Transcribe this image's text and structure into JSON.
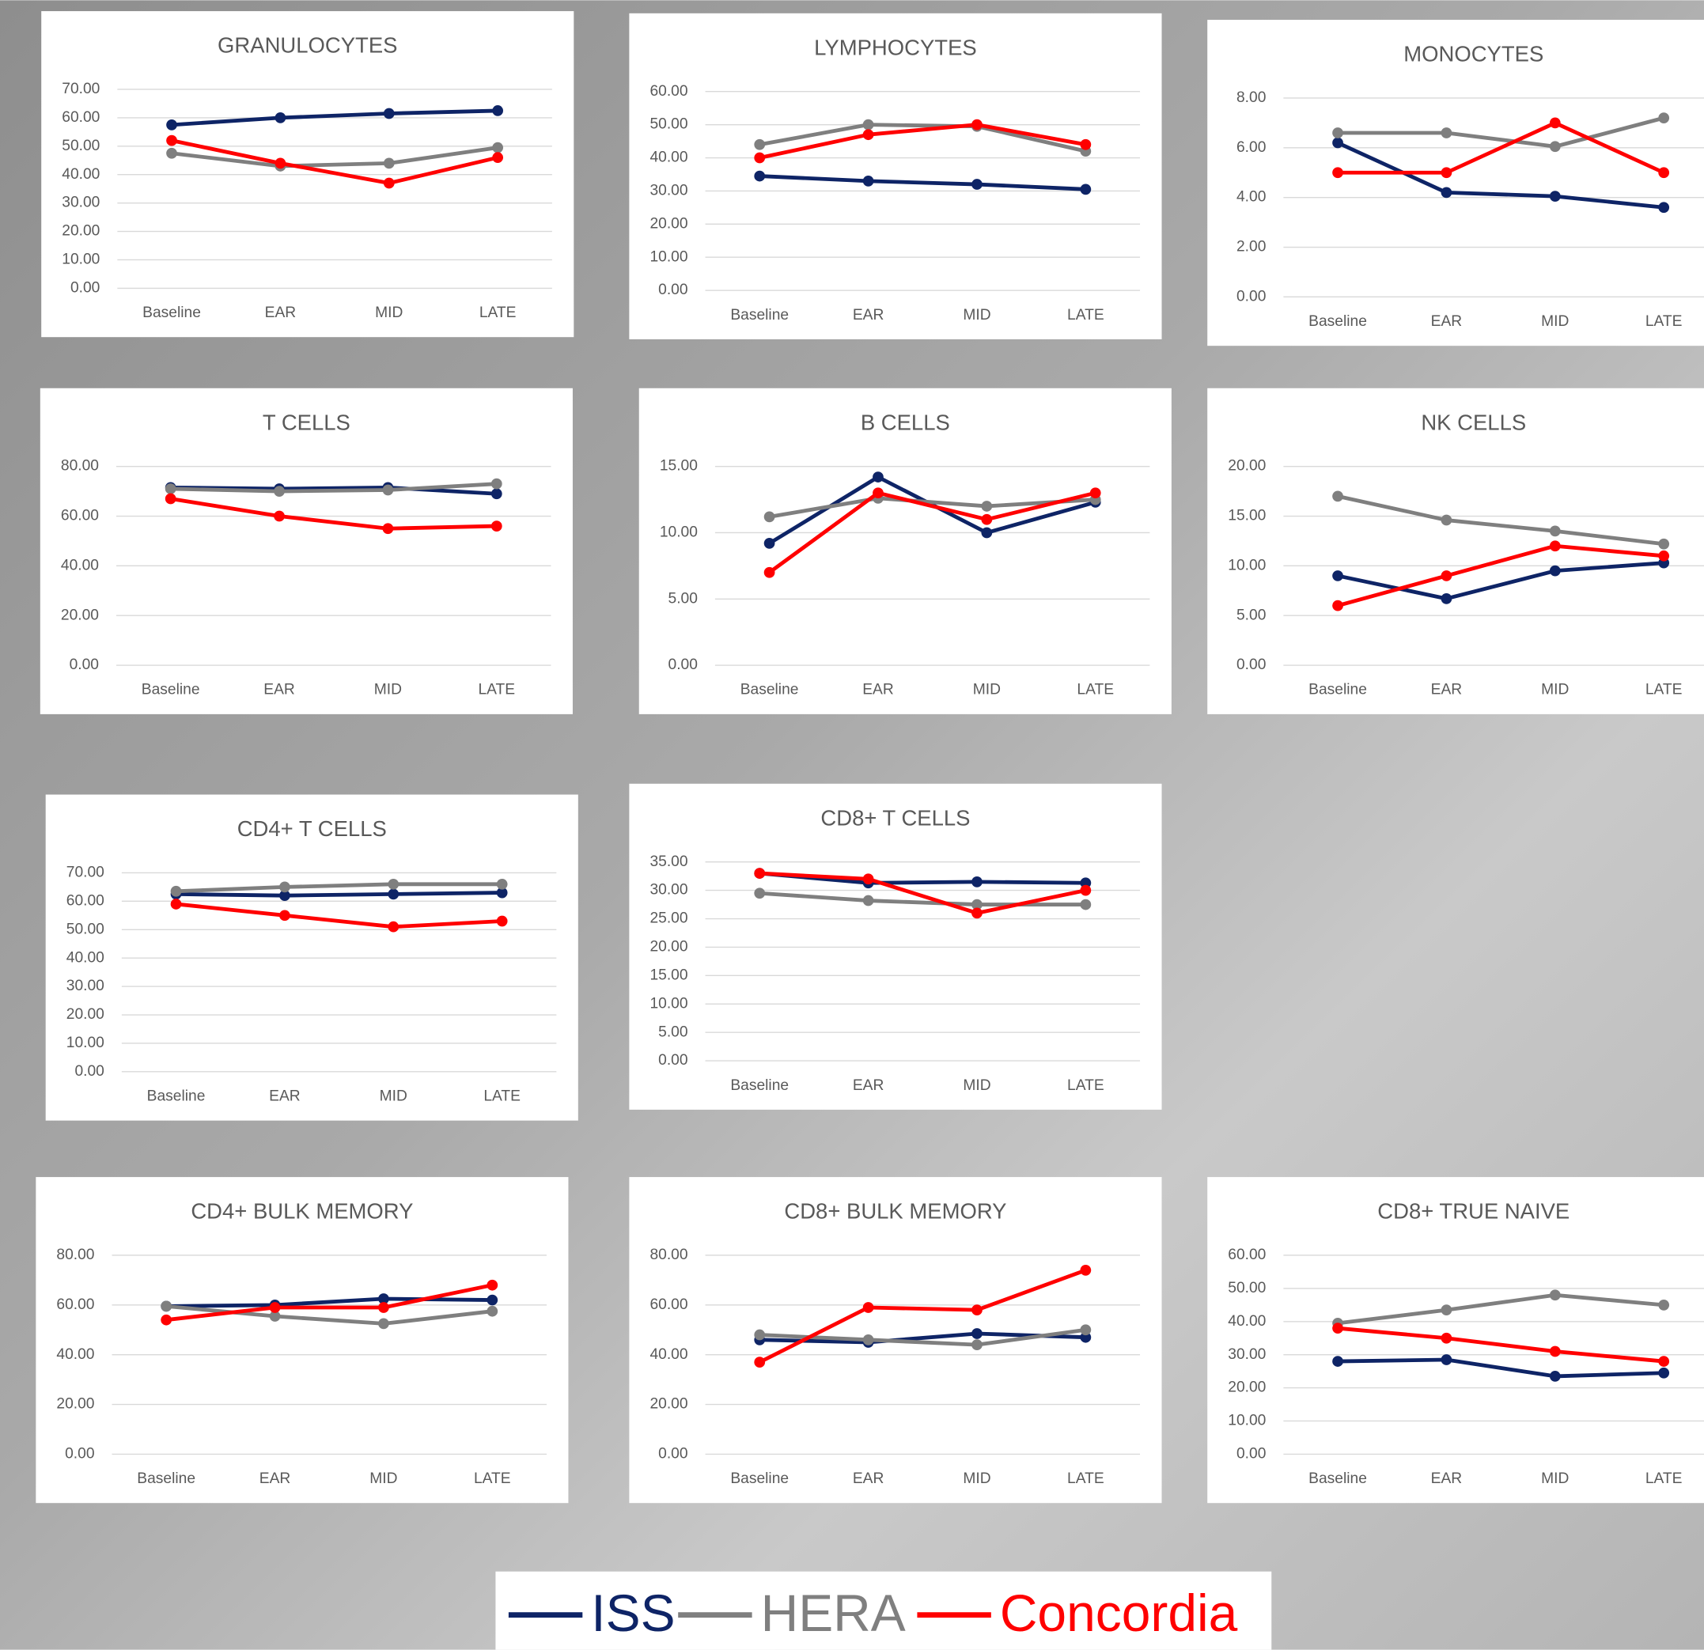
{
  "chart_data": [
    {
      "type": "line",
      "title": "GRANULOCYTES",
      "categories": [
        "Baseline",
        "EAR",
        "MID",
        "LATE"
      ],
      "ylim": [
        0,
        70
      ],
      "yticks": [
        {
          "value": 0,
          "label": "0.00"
        },
        {
          "value": 10,
          "label": "10.00"
        },
        {
          "value": 20,
          "label": "20.00"
        },
        {
          "value": 30,
          "label": "30.00"
        },
        {
          "value": 40,
          "label": "40.00"
        },
        {
          "value": 50,
          "label": "50.00"
        },
        {
          "value": 60,
          "label": "60.00"
        },
        {
          "value": 70,
          "label": "70.00"
        }
      ],
      "series": [
        {
          "values": [
            57.5,
            60,
            61.5,
            62.5
          ]
        },
        {
          "values": [
            47.5,
            43,
            44,
            49.5
          ]
        },
        {
          "values": [
            52,
            44,
            37,
            46
          ]
        }
      ]
    },
    {
      "type": "line",
      "title": "LYMPHOCYTES",
      "categories": [
        "Baseline",
        "EAR",
        "MID",
        "LATE"
      ],
      "ylim": [
        0,
        60
      ],
      "yticks": [
        {
          "value": 0,
          "label": "0.00"
        },
        {
          "value": 10,
          "label": "10.00"
        },
        {
          "value": 20,
          "label": "20.00"
        },
        {
          "value": 30,
          "label": "30.00"
        },
        {
          "value": 40,
          "label": "40.00"
        },
        {
          "value": 50,
          "label": "50.00"
        },
        {
          "value": 60,
          "label": "60.00"
        }
      ],
      "series": [
        {
          "values": [
            34.5,
            33,
            32,
            30.5
          ]
        },
        {
          "values": [
            44,
            50,
            49.5,
            42
          ]
        },
        {
          "values": [
            40,
            47,
            50,
            44
          ]
        }
      ]
    },
    {
      "type": "line",
      "title": "MONOCYTES",
      "categories": [
        "Baseline",
        "EAR",
        "MID",
        "LATE"
      ],
      "ylim": [
        0,
        8
      ],
      "yticks": [
        {
          "value": 0,
          "label": "0.00"
        },
        {
          "value": 2,
          "label": "2.00"
        },
        {
          "value": 4,
          "label": "4.00"
        },
        {
          "value": 6,
          "label": "6.00"
        },
        {
          "value": 8,
          "label": "8.00"
        }
      ],
      "series": [
        {
          "values": [
            6.2,
            4.2,
            4.05,
            3.6
          ]
        },
        {
          "values": [
            6.6,
            6.6,
            6.05,
            7.2
          ]
        },
        {
          "values": [
            5,
            5,
            7,
            5
          ]
        }
      ]
    },
    {
      "type": "line",
      "title": "T CELLS",
      "categories": [
        "Baseline",
        "EAR",
        "MID",
        "LATE"
      ],
      "ylim": [
        0,
        80
      ],
      "yticks": [
        {
          "value": 0,
          "label": "0.00"
        },
        {
          "value": 20,
          "label": "20.00"
        },
        {
          "value": 40,
          "label": "40.00"
        },
        {
          "value": 60,
          "label": "60.00"
        },
        {
          "value": 80,
          "label": "80.00"
        }
      ],
      "series": [
        {
          "values": [
            71.5,
            71,
            71.5,
            69
          ]
        },
        {
          "values": [
            71,
            70,
            70.5,
            73
          ]
        },
        {
          "values": [
            67,
            60,
            55,
            56
          ]
        }
      ]
    },
    {
      "type": "line",
      "title": "B CELLS",
      "categories": [
        "Baseline",
        "EAR",
        "MID",
        "LATE"
      ],
      "ylim": [
        0,
        15
      ],
      "yticks": [
        {
          "value": 0,
          "label": "0.00"
        },
        {
          "value": 5,
          "label": "5.00"
        },
        {
          "value": 10,
          "label": "10.00"
        },
        {
          "value": 15,
          "label": "15.00"
        }
      ],
      "series": [
        {
          "values": [
            9.2,
            14.2,
            10,
            12.3
          ]
        },
        {
          "values": [
            11.2,
            12.6,
            12,
            12.5
          ]
        },
        {
          "values": [
            7,
            13,
            11,
            13
          ]
        }
      ]
    },
    {
      "type": "line",
      "title": "NK CELLS",
      "categories": [
        "Baseline",
        "EAR",
        "MID",
        "LATE"
      ],
      "ylim": [
        0,
        20
      ],
      "yticks": [
        {
          "value": 0,
          "label": "0.00"
        },
        {
          "value": 5,
          "label": "5.00"
        },
        {
          "value": 10,
          "label": "10.00"
        },
        {
          "value": 15,
          "label": "15.00"
        },
        {
          "value": 20,
          "label": "20.00"
        }
      ],
      "series": [
        {
          "values": [
            9,
            6.7,
            9.5,
            10.3
          ]
        },
        {
          "values": [
            17,
            14.6,
            13.5,
            12.2
          ]
        },
        {
          "values": [
            6,
            9,
            12,
            11
          ]
        }
      ]
    },
    {
      "type": "line",
      "title": "CD4+ T CELLS",
      "categories": [
        "Baseline",
        "EAR",
        "MID",
        "LATE"
      ],
      "ylim": [
        0,
        70
      ],
      "yticks": [
        {
          "value": 0,
          "label": "0.00"
        },
        {
          "value": 10,
          "label": "10.00"
        },
        {
          "value": 20,
          "label": "20.00"
        },
        {
          "value": 30,
          "label": "30.00"
        },
        {
          "value": 40,
          "label": "40.00"
        },
        {
          "value": 50,
          "label": "50.00"
        },
        {
          "value": 60,
          "label": "60.00"
        },
        {
          "value": 70,
          "label": "70.00"
        }
      ],
      "series": [
        {
          "values": [
            62.5,
            62,
            62.5,
            63
          ]
        },
        {
          "values": [
            63.5,
            65,
            66,
            66
          ]
        },
        {
          "values": [
            59,
            55,
            51,
            53
          ]
        }
      ]
    },
    {
      "type": "line",
      "title": "CD8+ T CELLS",
      "categories": [
        "Baseline",
        "EAR",
        "MID",
        "LATE"
      ],
      "ylim": [
        0,
        35
      ],
      "yticks": [
        {
          "value": 0,
          "label": "0.00"
        },
        {
          "value": 5,
          "label": "5.00"
        },
        {
          "value": 10,
          "label": "10.00"
        },
        {
          "value": 15,
          "label": "15.00"
        },
        {
          "value": 20,
          "label": "20.00"
        },
        {
          "value": 25,
          "label": "25.00"
        },
        {
          "value": 30,
          "label": "30.00"
        },
        {
          "value": 35,
          "label": "35.00"
        }
      ],
      "series": [
        {
          "values": [
            33,
            31.3,
            31.5,
            31.3
          ]
        },
        {
          "values": [
            29.5,
            28.2,
            27.5,
            27.5
          ]
        },
        {
          "values": [
            33,
            32,
            26,
            30
          ]
        }
      ]
    },
    {
      "type": "line",
      "title": "CD4+ BULK MEMORY",
      "categories": [
        "Baseline",
        "EAR",
        "MID",
        "LATE"
      ],
      "ylim": [
        0,
        80
      ],
      "yticks": [
        {
          "value": 0,
          "label": "0.00"
        },
        {
          "value": 20,
          "label": "20.00"
        },
        {
          "value": 40,
          "label": "40.00"
        },
        {
          "value": 60,
          "label": "60.00"
        },
        {
          "value": 80,
          "label": "80.00"
        }
      ],
      "series": [
        {
          "values": [
            59.5,
            60,
            62.5,
            62
          ]
        },
        {
          "values": [
            59.5,
            55.5,
            52.5,
            57.5
          ]
        },
        {
          "values": [
            54,
            59,
            59,
            68
          ]
        }
      ]
    },
    {
      "type": "line",
      "title": "CD8+ BULK MEMORY",
      "categories": [
        "Baseline",
        "EAR",
        "MID",
        "LATE"
      ],
      "ylim": [
        0,
        80
      ],
      "yticks": [
        {
          "value": 0,
          "label": "0.00"
        },
        {
          "value": 20,
          "label": "20.00"
        },
        {
          "value": 40,
          "label": "40.00"
        },
        {
          "value": 60,
          "label": "60.00"
        },
        {
          "value": 80,
          "label": "80.00"
        }
      ],
      "series": [
        {
          "values": [
            46,
            45,
            48.5,
            47
          ]
        },
        {
          "values": [
            48,
            46,
            44,
            50
          ]
        },
        {
          "values": [
            37,
            59,
            58,
            74
          ]
        }
      ]
    },
    {
      "type": "line",
      "title": "CD8+ TRUE NAIVE",
      "categories": [
        "Baseline",
        "EAR",
        "MID",
        "LATE"
      ],
      "ylim": [
        0,
        60
      ],
      "yticks": [
        {
          "value": 0,
          "label": "0.00"
        },
        {
          "value": 10,
          "label": "10.00"
        },
        {
          "value": 20,
          "label": "20.00"
        },
        {
          "value": 30,
          "label": "30.00"
        },
        {
          "value": 40,
          "label": "40.00"
        },
        {
          "value": 50,
          "label": "50.00"
        },
        {
          "value": 60,
          "label": "60.00"
        }
      ],
      "series": [
        {
          "values": [
            28,
            28.5,
            23.5,
            24.5
          ]
        },
        {
          "values": [
            39.5,
            43.5,
            48,
            45
          ]
        },
        {
          "values": [
            38,
            35,
            31,
            28
          ]
        }
      ]
    }
  ],
  "legend": {
    "items": [
      {
        "name": "ISS",
        "color": "#0e2466"
      },
      {
        "name": "HERA",
        "color": "#7f7f7f"
      },
      {
        "name": "Concordia",
        "color": "#ff0000"
      }
    ]
  }
}
